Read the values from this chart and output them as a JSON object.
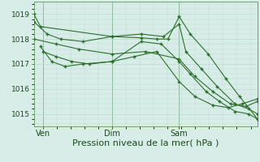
{
  "bg_color": "#cce8e0",
  "plot_bg_color": "#d8ede8",
  "grid_color": "#b8d8d0",
  "line_color": "#2d6e2d",
  "marker_color": "#2d6e2d",
  "xlabel": "Pression niveau de la mer( hPa )",
  "xlabel_fontsize": 8,
  "yticks": [
    1015,
    1016,
    1017,
    1018,
    1019
  ],
  "ylim": [
    1014.5,
    1019.5
  ],
  "xlim": [
    0,
    1
  ],
  "xtick_labels": [
    "Ven",
    "Dim",
    "Sam"
  ],
  "xtick_positions": [
    0.04,
    0.35,
    0.65
  ],
  "vline_positions": [
    0.04,
    0.35,
    0.65
  ],
  "series": [
    {
      "x": [
        0.0,
        0.03,
        0.35,
        0.48,
        0.55,
        0.6,
        0.65,
        0.7,
        0.78,
        0.86,
        0.92,
        1.0
      ],
      "y": [
        1019.0,
        1018.5,
        1018.1,
        1018.05,
        1018.0,
        1018.0,
        1018.9,
        1018.2,
        1017.4,
        1016.4,
        1015.7,
        1014.8
      ]
    },
    {
      "x": [
        0.0,
        0.06,
        0.12,
        0.22,
        0.35,
        0.48,
        0.58,
        0.65,
        0.68,
        0.75,
        0.82,
        0.9,
        0.96,
        1.0
      ],
      "y": [
        1018.7,
        1018.2,
        1018.0,
        1017.9,
        1018.1,
        1018.2,
        1018.1,
        1018.6,
        1017.5,
        1016.8,
        1016.1,
        1015.4,
        1015.2,
        1015.0
      ]
    },
    {
      "x": [
        0.0,
        0.1,
        0.2,
        0.35,
        0.5,
        0.65,
        0.72,
        0.8,
        0.88,
        0.95,
        1.0
      ],
      "y": [
        1018.0,
        1017.8,
        1017.6,
        1017.4,
        1017.5,
        1017.2,
        1016.5,
        1015.9,
        1015.4,
        1015.3,
        1015.5
      ]
    },
    {
      "x": [
        0.04,
        0.1,
        0.17,
        0.25,
        0.35,
        0.45,
        0.55,
        0.65,
        0.72,
        0.8,
        0.87,
        0.93,
        1.0
      ],
      "y": [
        1017.5,
        1017.3,
        1017.1,
        1017.0,
        1017.1,
        1017.3,
        1017.5,
        1016.3,
        1015.7,
        1015.35,
        1015.25,
        1015.4,
        1015.6
      ]
    },
    {
      "x": [
        0.03,
        0.08,
        0.14,
        0.22,
        0.35,
        0.48,
        0.57,
        0.65,
        0.7,
        0.77,
        0.83,
        0.9,
        0.96,
        1.0
      ],
      "y": [
        1017.7,
        1017.1,
        1016.9,
        1017.0,
        1017.1,
        1017.9,
        1017.8,
        1017.1,
        1016.6,
        1015.9,
        1015.5,
        1015.1,
        1015.0,
        1014.8
      ]
    }
  ]
}
